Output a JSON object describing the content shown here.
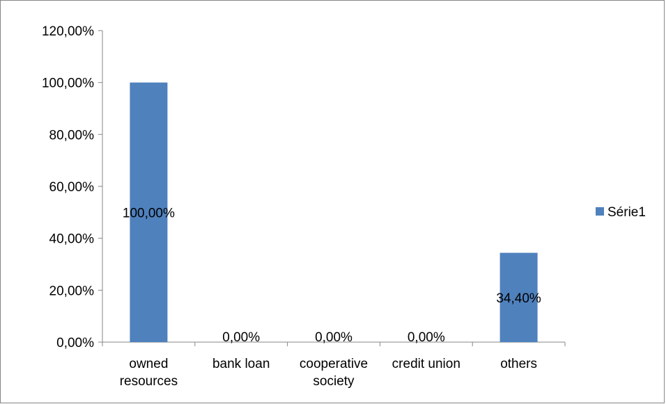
{
  "chart_data": {
    "type": "bar",
    "title": "",
    "xlabel": "",
    "ylabel": "",
    "categories": [
      [
        "owned",
        "resources"
      ],
      [
        "bank loan"
      ],
      [
        "cooperative",
        "society"
      ],
      [
        "credit union"
      ],
      [
        "others"
      ]
    ],
    "series": [
      {
        "name": "Série1",
        "values": [
          100.0,
          0.0,
          0.0,
          0.0,
          34.4
        ],
        "color": "#4F81BD"
      }
    ],
    "data_labels": [
      "100,00%",
      "0,00%",
      "0,00%",
      "0,00%",
      "34,40%"
    ],
    "ylim": [
      0,
      120
    ],
    "yticks": [
      0,
      20,
      40,
      60,
      80,
      100,
      120
    ],
    "ytick_labels": [
      "0,00%",
      "20,00%",
      "40,00%",
      "60,00%",
      "80,00%",
      "100,00%",
      "120,00%"
    ],
    "grid": false,
    "legend": "right"
  }
}
